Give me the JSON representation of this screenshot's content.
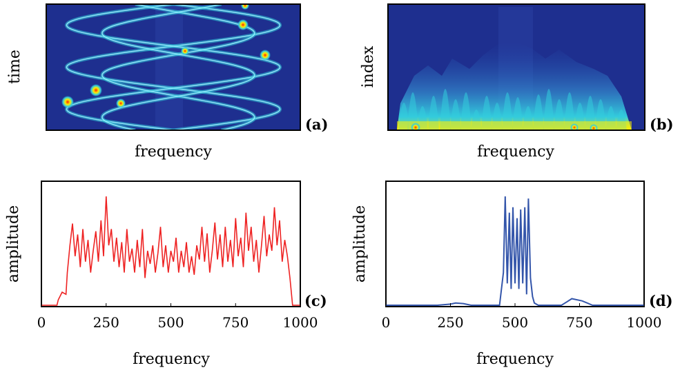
{
  "chart_data": [
    {
      "panel": "(a)",
      "type": "heatmap",
      "xlabel": "frequency",
      "ylabel": "time",
      "colormap": "jet",
      "background_color": "#1e2f8f",
      "description_curves": "sinusoidal time-frequency ridges"
    },
    {
      "panel": "(b)",
      "type": "heatmap",
      "xlabel": "frequency",
      "ylabel": "index",
      "colormap": "jet",
      "background_color": "#1e2f8f"
    },
    {
      "panel": "(c)",
      "type": "line",
      "xlabel": "frequency",
      "ylabel": "amplitude",
      "xlim": [
        0,
        1000
      ],
      "xticks": [
        "0",
        "250",
        "500",
        "750",
        "1000"
      ],
      "color": "#ee2222",
      "x": [
        0,
        60,
        65,
        80,
        95,
        100,
        110,
        120,
        130,
        140,
        150,
        160,
        170,
        180,
        190,
        200,
        210,
        220,
        230,
        240,
        250,
        260,
        270,
        280,
        290,
        300,
        310,
        320,
        330,
        340,
        350,
        360,
        370,
        380,
        390,
        400,
        410,
        420,
        430,
        440,
        450,
        460,
        470,
        480,
        490,
        500,
        510,
        520,
        530,
        540,
        550,
        560,
        570,
        580,
        590,
        600,
        610,
        620,
        630,
        640,
        650,
        660,
        670,
        680,
        690,
        700,
        710,
        720,
        730,
        740,
        750,
        760,
        770,
        780,
        790,
        800,
        810,
        820,
        830,
        840,
        850,
        860,
        870,
        880,
        890,
        900,
        910,
        920,
        930,
        940,
        950,
        960,
        970,
        1000
      ],
      "y": [
        0.0,
        0.0,
        0.05,
        0.12,
        0.1,
        0.3,
        0.55,
        0.75,
        0.45,
        0.65,
        0.35,
        0.7,
        0.4,
        0.6,
        0.3,
        0.5,
        0.68,
        0.4,
        0.78,
        0.45,
        1.0,
        0.55,
        0.7,
        0.4,
        0.62,
        0.35,
        0.58,
        0.3,
        0.7,
        0.4,
        0.52,
        0.3,
        0.6,
        0.35,
        0.7,
        0.25,
        0.5,
        0.38,
        0.55,
        0.3,
        0.48,
        0.72,
        0.35,
        0.55,
        0.3,
        0.5,
        0.4,
        0.62,
        0.3,
        0.5,
        0.35,
        0.58,
        0.3,
        0.45,
        0.28,
        0.55,
        0.42,
        0.72,
        0.4,
        0.66,
        0.3,
        0.5,
        0.76,
        0.42,
        0.65,
        0.35,
        0.72,
        0.4,
        0.6,
        0.35,
        0.8,
        0.45,
        0.62,
        0.35,
        0.85,
        0.5,
        0.72,
        0.4,
        0.6,
        0.3,
        0.55,
        0.82,
        0.45,
        0.65,
        0.5,
        0.9,
        0.55,
        0.78,
        0.4,
        0.6,
        0.45,
        0.25,
        0.0,
        0.0
      ]
    },
    {
      "panel": "(d)",
      "type": "line",
      "xlabel": "frequency",
      "ylabel": "amplitude",
      "xlim": [
        0,
        1000
      ],
      "xticks": [
        "0",
        "250",
        "500",
        "750",
        "1000"
      ],
      "color": "#3355aa",
      "x": [
        0,
        200,
        250,
        270,
        300,
        330,
        440,
        455,
        462,
        470,
        478,
        485,
        492,
        500,
        508,
        515,
        522,
        530,
        538,
        545,
        552,
        560,
        568,
        575,
        590,
        680,
        700,
        720,
        740,
        760,
        780,
        800,
        1000
      ],
      "y": [
        0.0,
        0.0,
        0.01,
        0.02,
        0.015,
        0.0,
        0.0,
        0.3,
        1.0,
        0.2,
        0.85,
        0.15,
        0.9,
        0.2,
        0.8,
        0.15,
        0.88,
        0.2,
        0.9,
        0.1,
        0.98,
        0.25,
        0.08,
        0.02,
        0.0,
        0.0,
        0.03,
        0.06,
        0.05,
        0.04,
        0.02,
        0.0,
        0.0
      ]
    }
  ],
  "labels": {
    "a": "(a)",
    "b": "(b)",
    "c": "(c)",
    "d": "(d)",
    "freq": "frequency",
    "time": "time",
    "index": "index",
    "amp": "amplitude"
  }
}
